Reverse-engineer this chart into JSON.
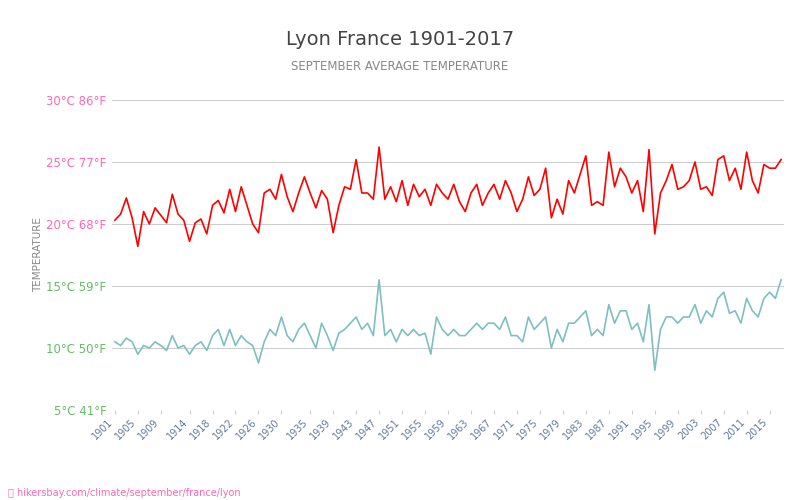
{
  "title": "Lyon France 1901-2017",
  "subtitle": "SEPTEMBER AVERAGE TEMPERATURE",
  "ylabel": "TEMPERATURE",
  "xlabel_url": "hikersbay.com/climate/september/france/lyon",
  "years": [
    1901,
    1902,
    1903,
    1904,
    1905,
    1906,
    1907,
    1908,
    1909,
    1910,
    1911,
    1912,
    1913,
    1914,
    1915,
    1916,
    1917,
    1918,
    1919,
    1920,
    1921,
    1922,
    1923,
    1924,
    1925,
    1926,
    1927,
    1928,
    1929,
    1930,
    1931,
    1932,
    1933,
    1934,
    1935,
    1936,
    1937,
    1938,
    1939,
    1940,
    1941,
    1942,
    1943,
    1944,
    1945,
    1946,
    1947,
    1948,
    1949,
    1950,
    1951,
    1952,
    1953,
    1954,
    1955,
    1956,
    1957,
    1958,
    1959,
    1960,
    1961,
    1962,
    1963,
    1964,
    1965,
    1966,
    1967,
    1968,
    1969,
    1970,
    1971,
    1972,
    1973,
    1974,
    1975,
    1976,
    1977,
    1978,
    1979,
    1980,
    1981,
    1982,
    1983,
    1984,
    1985,
    1986,
    1987,
    1988,
    1989,
    1990,
    1991,
    1992,
    1993,
    1994,
    1995,
    1996,
    1997,
    1998,
    1999,
    2000,
    2001,
    2002,
    2003,
    2004,
    2005,
    2006,
    2007,
    2008,
    2009,
    2010,
    2011,
    2012,
    2013,
    2014,
    2015,
    2016,
    2017
  ],
  "day_temps": [
    20.3,
    20.8,
    22.1,
    20.5,
    18.2,
    21.0,
    20.0,
    21.3,
    20.7,
    20.1,
    22.4,
    20.8,
    20.3,
    18.6,
    20.1,
    20.4,
    19.2,
    21.5,
    21.9,
    20.9,
    22.8,
    21.0,
    23.0,
    21.5,
    20.0,
    19.3,
    22.5,
    22.8,
    22.0,
    24.0,
    22.2,
    21.0,
    22.5,
    23.8,
    22.5,
    21.3,
    22.7,
    22.0,
    19.3,
    21.5,
    23.0,
    22.8,
    25.2,
    22.5,
    22.5,
    22.0,
    26.2,
    22.0,
    23.0,
    21.8,
    23.5,
    21.5,
    23.2,
    22.2,
    22.8,
    21.5,
    23.2,
    22.5,
    22.0,
    23.2,
    21.8,
    21.0,
    22.5,
    23.2,
    21.5,
    22.5,
    23.2,
    22.0,
    23.5,
    22.5,
    21.0,
    22.0,
    23.8,
    22.3,
    22.8,
    24.5,
    20.5,
    22.0,
    20.8,
    23.5,
    22.5,
    24.0,
    25.5,
    21.5,
    21.8,
    21.5,
    25.8,
    23.0,
    24.5,
    23.8,
    22.5,
    23.5,
    21.0,
    26.0,
    19.2,
    22.5,
    23.5,
    24.8,
    22.8,
    23.0,
    23.5,
    25.0,
    22.8,
    23.0,
    22.3,
    25.2,
    25.5,
    23.5,
    24.5,
    22.8,
    25.8,
    23.5,
    22.5,
    24.8,
    24.5,
    24.5,
    25.2
  ],
  "night_temps": [
    10.5,
    10.2,
    10.8,
    10.5,
    9.5,
    10.2,
    10.0,
    10.5,
    10.2,
    9.8,
    11.0,
    10.0,
    10.2,
    9.5,
    10.2,
    10.5,
    9.8,
    11.0,
    11.5,
    10.2,
    11.5,
    10.2,
    11.0,
    10.5,
    10.2,
    8.8,
    10.5,
    11.5,
    11.0,
    12.5,
    11.0,
    10.5,
    11.5,
    12.0,
    11.0,
    10.0,
    12.0,
    11.0,
    9.8,
    11.2,
    11.5,
    12.0,
    12.5,
    11.5,
    12.0,
    11.0,
    15.5,
    11.0,
    11.5,
    10.5,
    11.5,
    11.0,
    11.5,
    11.0,
    11.2,
    9.5,
    12.5,
    11.5,
    11.0,
    11.5,
    11.0,
    11.0,
    11.5,
    12.0,
    11.5,
    12.0,
    12.0,
    11.5,
    12.5,
    11.0,
    11.0,
    10.5,
    12.5,
    11.5,
    12.0,
    12.5,
    10.0,
    11.5,
    10.5,
    12.0,
    12.0,
    12.5,
    13.0,
    11.0,
    11.5,
    11.0,
    13.5,
    12.0,
    13.0,
    13.0,
    11.5,
    12.0,
    10.5,
    13.5,
    8.2,
    11.5,
    12.5,
    12.5,
    12.0,
    12.5,
    12.5,
    13.5,
    12.0,
    13.0,
    12.5,
    14.0,
    14.5,
    12.8,
    13.0,
    12.0,
    14.0,
    13.0,
    12.5,
    14.0,
    14.5,
    14.0,
    15.5
  ],
  "yticks_c": [
    5,
    10,
    15,
    20,
    25,
    30
  ],
  "yticks_f": [
    41,
    50,
    59,
    68,
    77,
    86
  ],
  "xtick_years": [
    1901,
    1905,
    1909,
    1914,
    1918,
    1922,
    1926,
    1930,
    1935,
    1939,
    1943,
    1947,
    1951,
    1955,
    1959,
    1963,
    1967,
    1971,
    1975,
    1979,
    1983,
    1987,
    1991,
    1995,
    1999,
    2003,
    2007,
    2011,
    2015
  ],
  "ylim": [
    5,
    30
  ],
  "day_color": "#ff0000",
  "night_color": "#7fbfbf",
  "grid_color": "#cccccc",
  "title_color": "#444444",
  "subtitle_color": "#888888",
  "ylabel_color": "#888888",
  "ytick_color": "#ff69b4",
  "ytick_color_green": "#66bb66",
  "url_color": "#ff69b4",
  "background_color": "#ffffff"
}
